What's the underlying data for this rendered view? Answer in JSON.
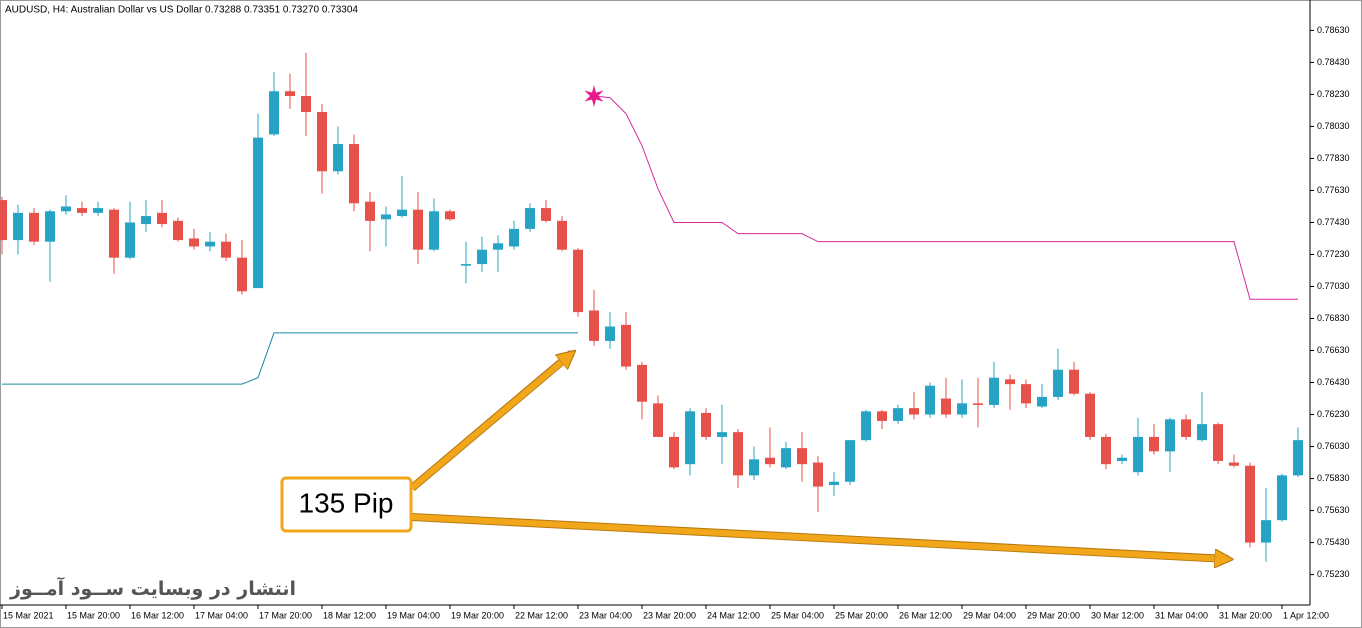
{
  "chart_data": {
    "type": "candlestick",
    "title": "AUDUSD, H4:  Australian Dollar vs US Dollar  0.73288 0.73351 0.73270 0.73304",
    "categories": [
      "15 Mar 2021",
      null,
      null,
      null,
      "15 Mar 20:00",
      null,
      null,
      null,
      "16 Mar 12:00",
      null,
      null,
      null,
      "17 Mar 04:00",
      null,
      null,
      null,
      "17 Mar 20:00",
      null,
      null,
      null,
      "18 Mar 12:00",
      null,
      null,
      null,
      "19 Mar 04:00",
      null,
      null,
      null,
      "19 Mar 20:00",
      null,
      null,
      null,
      "22 Mar 12:00",
      null,
      null,
      null,
      "23 Mar 04:00",
      null,
      null,
      null,
      "23 Mar 20:00",
      null,
      null,
      null,
      "24 Mar 12:00",
      null,
      null,
      null,
      "25 Mar 04:00",
      null,
      null,
      null,
      "25 Mar 20:00",
      null,
      null,
      null,
      "26 Mar 12:00",
      null,
      null,
      null,
      "29 Mar 04:00",
      null,
      null,
      null,
      "29 Mar 20:00",
      null,
      null,
      null,
      "30 Mar 12:00",
      null,
      null,
      null,
      "31 Mar 04:00",
      null,
      null,
      null,
      "31 Mar 20:00",
      null,
      null,
      null,
      "1 Apr 12:00",
      null
    ],
    "open": [
      0.7757,
      0.7732,
      0.7749,
      0.7731,
      0.775,
      0.7752,
      0.7749,
      0.7751,
      0.7721,
      0.7742,
      0.7749,
      0.7744,
      0.7733,
      0.7728,
      0.7731,
      0.7721,
      0.7702,
      0.7798,
      0.7825,
      0.7822,
      0.7812,
      0.7775,
      0.7792,
      0.7756,
      0.7745,
      0.7747,
      0.7751,
      0.7726,
      0.775,
      0.7716,
      0.7717,
      0.7726,
      0.7728,
      0.7739,
      0.7752,
      0.7744,
      0.7726,
      0.7688,
      0.7669,
      0.7679,
      0.7654,
      0.763,
      0.7609,
      0.7592,
      0.7624,
      0.7609,
      0.7612,
      0.7585,
      0.7596,
      0.759,
      0.7602,
      0.7593,
      0.7579,
      0.7581,
      0.7607,
      0.7625,
      0.7619,
      0.7627,
      0.7623,
      0.7633,
      0.7623,
      0.763,
      0.7629,
      0.7645,
      0.7642,
      0.7628,
      0.7634,
      0.7651,
      0.7636,
      0.7609,
      0.7594,
      0.7587,
      0.7609,
      0.76,
      0.762,
      0.7607,
      0.7617,
      0.7593,
      0.7591,
      0.7543,
      0.7557,
      0.7585
    ],
    "high": [
      0.7759,
      0.7754,
      0.7752,
      0.7751,
      0.776,
      0.7756,
      0.7756,
      0.7752,
      0.7756,
      0.7757,
      0.7757,
      0.7746,
      0.7739,
      0.7737,
      0.7736,
      0.7732,
      0.7811,
      0.7837,
      0.7836,
      0.7849,
      0.7817,
      0.7803,
      0.7798,
      0.7762,
      0.7753,
      0.7772,
      0.7762,
      0.7758,
      0.7751,
      0.7731,
      0.7734,
      0.7735,
      0.7744,
      0.7755,
      0.7757,
      0.7747,
      0.7727,
      0.7701,
      0.7687,
      0.7687,
      0.7656,
      0.7635,
      0.7612,
      0.7627,
      0.7627,
      0.7629,
      0.7614,
      0.7603,
      0.7615,
      0.7606,
      0.7612,
      0.7597,
      0.7587,
      0.7607,
      0.7626,
      0.7626,
      0.7629,
      0.7637,
      0.7643,
      0.7646,
      0.7645,
      0.7646,
      0.7656,
      0.7648,
      0.7645,
      0.7642,
      0.7664,
      0.7656,
      0.7637,
      0.7611,
      0.7598,
      0.7621,
      0.7617,
      0.7621,
      0.7623,
      0.7637,
      0.7618,
      0.7598,
      0.7593,
      0.7577,
      0.7586,
      0.7615
    ],
    "low": [
      0.7723,
      0.7723,
      0.7729,
      0.7706,
      0.7748,
      0.7747,
      0.7747,
      0.7711,
      0.772,
      0.7737,
      0.774,
      0.7731,
      0.7726,
      0.7725,
      0.7719,
      0.7698,
      0.7702,
      0.7797,
      0.7814,
      0.7797,
      0.7761,
      0.7773,
      0.775,
      0.7725,
      0.7728,
      0.7746,
      0.7717,
      0.7725,
      0.7744,
      0.7705,
      0.7712,
      0.7712,
      0.7726,
      0.7737,
      0.7743,
      0.7725,
      0.7684,
      0.7666,
      0.7664,
      0.7651,
      0.762,
      0.7609,
      0.7589,
      0.7585,
      0.7607,
      0.7592,
      0.7577,
      0.7582,
      0.759,
      0.7589,
      0.7581,
      0.7562,
      0.7572,
      0.7579,
      0.7606,
      0.7614,
      0.7617,
      0.762,
      0.7621,
      0.7621,
      0.7621,
      0.7615,
      0.7627,
      0.7626,
      0.7627,
      0.7627,
      0.7632,
      0.7635,
      0.7607,
      0.7589,
      0.7592,
      0.7585,
      0.7598,
      0.7587,
      0.7607,
      0.7606,
      0.7592,
      0.759,
      0.754,
      0.7531,
      0.7556,
      0.7584
    ],
    "close": [
      0.7732,
      0.7749,
      0.7731,
      0.775,
      0.7753,
      0.7749,
      0.7752,
      0.7721,
      0.7743,
      0.7747,
      0.7742,
      0.7732,
      0.7728,
      0.7731,
      0.7721,
      0.77,
      0.7796,
      0.7825,
      0.7822,
      0.7812,
      0.7775,
      0.7792,
      0.7755,
      0.7744,
      0.7748,
      0.7751,
      0.7726,
      0.775,
      0.7745,
      0.7717,
      0.7726,
      0.773,
      0.7739,
      0.7752,
      0.7744,
      0.7726,
      0.7687,
      0.7669,
      0.7678,
      0.7653,
      0.7631,
      0.7609,
      0.759,
      0.7625,
      0.7609,
      0.7612,
      0.7585,
      0.7595,
      0.7592,
      0.7602,
      0.7592,
      0.7578,
      0.7581,
      0.7607,
      0.7625,
      0.7619,
      0.7627,
      0.7623,
      0.7641,
      0.7623,
      0.763,
      0.7629,
      0.7646,
      0.7642,
      0.763,
      0.7634,
      0.7651,
      0.7636,
      0.7609,
      0.7592,
      0.7596,
      0.7609,
      0.76,
      0.762,
      0.7609,
      0.7617,
      0.7594,
      0.7591,
      0.7543,
      0.7557,
      0.7585,
      0.7607
    ],
    "up_color": "#26a3c4",
    "down_color": "#e8514a",
    "overlays": [
      {
        "color": "#1a8a9a",
        "values": [
          0.7642,
          0.7642,
          0.7642,
          0.7642,
          0.7642,
          0.7642,
          0.7642,
          0.7642,
          0.7642,
          0.7642,
          0.7642,
          0.7642,
          0.7642,
          0.7642,
          0.7642,
          0.7642,
          0.7646,
          0.7674,
          0.7674,
          0.7674,
          0.7674,
          0.7674,
          0.7674,
          0.7674,
          0.7674,
          0.7674,
          0.7674,
          0.7674,
          0.7674,
          0.7674,
          0.7674,
          0.7674,
          0.7674,
          0.7674,
          0.7674,
          0.7674,
          0.7674,
          null,
          null,
          null,
          null,
          null,
          null,
          null,
          null,
          null,
          null,
          null,
          null,
          null,
          null,
          null,
          null,
          null,
          null,
          null,
          null,
          null,
          null,
          null,
          null,
          null,
          null,
          null,
          null,
          null,
          null,
          null,
          null,
          null,
          null,
          null,
          null,
          null,
          null,
          null,
          null,
          null,
          null,
          null,
          null,
          null
        ]
      },
      {
        "color": "#d42a9c",
        "values": [
          null,
          null,
          null,
          null,
          null,
          null,
          null,
          null,
          null,
          null,
          null,
          null,
          null,
          null,
          null,
          null,
          null,
          null,
          null,
          null,
          null,
          null,
          null,
          null,
          null,
          null,
          null,
          null,
          null,
          null,
          null,
          null,
          null,
          null,
          null,
          null,
          null,
          0.7822,
          0.7821,
          0.7811,
          0.7791,
          0.7764,
          0.7743,
          0.7743,
          0.7743,
          0.7743,
          0.7736,
          0.7736,
          0.7736,
          0.7736,
          0.7736,
          0.7731,
          0.7731,
          0.7731,
          0.7731,
          0.7731,
          0.7731,
          0.7731,
          0.7731,
          0.7731,
          0.7731,
          0.7731,
          0.7731,
          0.7731,
          0.7731,
          0.7731,
          0.7731,
          0.7731,
          0.7731,
          0.7731,
          0.7731,
          0.7731,
          0.7731,
          0.7731,
          0.7731,
          0.7731,
          0.7731,
          0.7731,
          0.7695,
          0.7695,
          0.7695,
          0.7695
        ]
      }
    ],
    "signal": {
      "color": "#e8198a",
      "values": [
        null,
        null,
        null,
        null,
        null,
        null,
        null,
        null,
        null,
        null,
        null,
        null,
        null,
        null,
        null,
        null,
        null,
        null,
        null,
        null,
        null,
        null,
        null,
        null,
        null,
        null,
        null,
        null,
        null,
        null,
        null,
        null,
        null,
        null,
        null,
        null,
        null,
        0.7822,
        null,
        null,
        null,
        null,
        null,
        null,
        null,
        null,
        null,
        null,
        null,
        null,
        null,
        null,
        null,
        null,
        null,
        null,
        null,
        null,
        null,
        null,
        null,
        null,
        null,
        null,
        null,
        null,
        null,
        null,
        null,
        null,
        null,
        null,
        null,
        null,
        null,
        null,
        null,
        null,
        null,
        null,
        null,
        null
      ]
    },
    "annotation": "135 Pip",
    "watermark": "انتشار در وبسایت  ســود آمــوز",
    "ylim": [
      0.7504,
      0.7882
    ],
    "yticks": [
      {
        "value": 0.7523,
        "label": "0.75230"
      },
      {
        "value": 0.7543,
        "label": "0.75430"
      },
      {
        "value": 0.7563,
        "label": "0.75630"
      },
      {
        "value": 0.7583,
        "label": "0.75830"
      },
      {
        "value": 0.7603,
        "label": "0.76030"
      },
      {
        "value": 0.7623,
        "label": "0.76230"
      },
      {
        "value": 0.7643,
        "label": "0.76430"
      },
      {
        "value": 0.7663,
        "label": "0.76630"
      },
      {
        "value": 0.7683,
        "label": "0.76830"
      },
      {
        "value": 0.7703,
        "label": "0.77030"
      },
      {
        "value": 0.7723,
        "label": "0.77230"
      },
      {
        "value": 0.7743,
        "label": "0.77430"
      },
      {
        "value": 0.7763,
        "label": "0.77630"
      },
      {
        "value": 0.7783,
        "label": "0.77830"
      },
      {
        "value": 0.7803,
        "label": "0.78030"
      },
      {
        "value": 0.7823,
        "label": "0.78230"
      },
      {
        "value": 0.7843,
        "label": "0.78430"
      },
      {
        "value": 0.7863,
        "label": "0.78630"
      }
    ]
  }
}
